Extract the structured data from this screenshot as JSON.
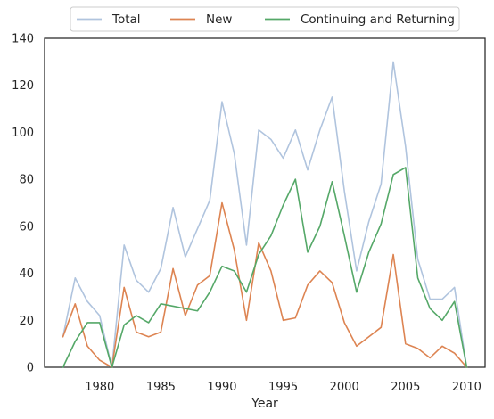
{
  "chart_data": {
    "type": "line",
    "title": "",
    "xlabel": "Year",
    "ylabel": "",
    "xlim": [
      1975.5,
      2011.5
    ],
    "ylim": [
      0,
      140
    ],
    "x_ticks": [
      1980,
      1985,
      1990,
      1995,
      2000,
      2005,
      2010
    ],
    "y_ticks": [
      0,
      20,
      40,
      60,
      80,
      100,
      120,
      140
    ],
    "grid": false,
    "legend_position": "top-center",
    "x": [
      1977,
      1978,
      1979,
      1980,
      1981,
      1982,
      1983,
      1984,
      1985,
      1986,
      1987,
      1988,
      1989,
      1990,
      1991,
      1992,
      1993,
      1994,
      1995,
      1996,
      1997,
      1998,
      1999,
      2000,
      2001,
      2002,
      2003,
      2004,
      2005,
      2006,
      2007,
      2008,
      2009,
      2010
    ],
    "series": [
      {
        "name": "Total",
        "color": "#b0c4de",
        "values": [
          13,
          38,
          28,
          22,
          0,
          52,
          37,
          32,
          42,
          68,
          47,
          59,
          71,
          113,
          91,
          52,
          101,
          97,
          89,
          101,
          84,
          101,
          115,
          75,
          41,
          62,
          78,
          130,
          94,
          46,
          29,
          29,
          34,
          0
        ]
      },
      {
        "name": "New",
        "color": "#dd8452",
        "values": [
          13,
          27,
          9,
          3,
          0,
          34,
          15,
          13,
          15,
          42,
          22,
          35,
          39,
          70,
          50,
          20,
          53,
          41,
          20,
          21,
          35,
          41,
          36,
          19,
          9,
          13,
          17,
          48,
          10,
          8,
          4,
          9,
          6,
          0
        ]
      },
      {
        "name": "Continuing and Returning",
        "color": "#55a868",
        "values": [
          0,
          11,
          19,
          19,
          0,
          18,
          22,
          19,
          27,
          26,
          25,
          24,
          32,
          43,
          41,
          32,
          48,
          56,
          69,
          80,
          49,
          60,
          79,
          56,
          32,
          49,
          61,
          82,
          85,
          38,
          25,
          20,
          28,
          0
        ]
      }
    ]
  }
}
